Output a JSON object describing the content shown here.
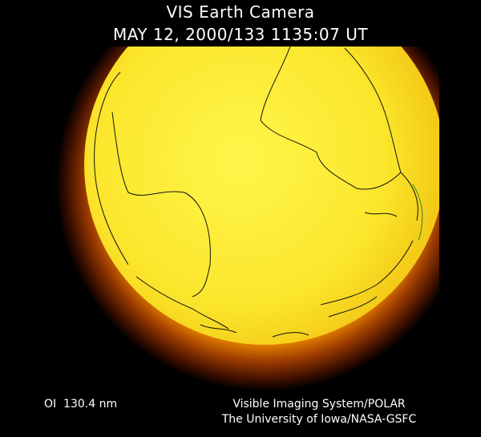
{
  "header": {
    "title": "VIS Earth Camera",
    "subtitle": "MAY 12, 2000/133 1135:07 UT"
  },
  "footer": {
    "filter": "OI  130.4 nm",
    "credit_line1": "Visible Imaging System/POLAR",
    "credit_line2": "The University of Iowa/NASA-GSFC"
  }
}
